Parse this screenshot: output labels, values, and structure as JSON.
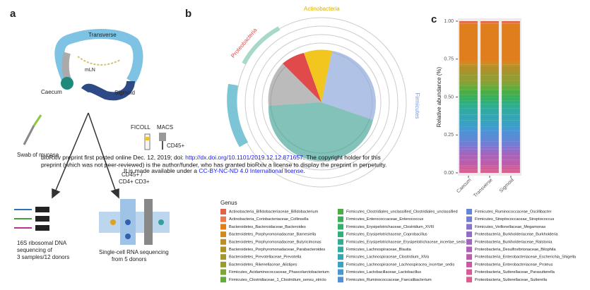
{
  "panel_labels": [
    "a",
    "b",
    "c"
  ],
  "panel_a": {
    "colon_labels": [
      "Transverse",
      "mLN",
      "Caecum",
      "Sigmoid"
    ],
    "swab": "Swab of mucosa",
    "ficoll": "FICOLL",
    "macs": "MACS",
    "cd45": "CD45+",
    "sorted": [
      "CD45+ /",
      "CD4+ CD3+"
    ],
    "dna_caption": [
      "16S ribosomal DNA",
      "sequencing of",
      "3 samples/12 donors"
    ],
    "rna_caption": [
      "Single-cell RNA sequencing",
      "from 5 donors"
    ]
  },
  "panel_b": {
    "phyla": [
      "Actinobacteria",
      "Proteobacteria",
      "Firmicutes"
    ]
  },
  "notice": {
    "line1": "bioRxiv preprint first posted online Dec. 12, 2019; doi: ",
    "doi": "http://dx.doi.org/10.1101/2019.12.12.871657",
    "line1b": ". The copyright holder for this",
    "line2": "preprint (which was not peer-reviewed) is the author/funder, who has granted bioRxiv a license to display the preprint in perpetuity.",
    "line3": "It is made available under a ",
    "license": "CC-BY-NC-ND 4.0 International license",
    "line3b": "."
  },
  "chart_data": {
    "type": "stacked-bar",
    "ylabel": "Relative abundance (%)",
    "legend_title": "Genus",
    "categories": [
      "Caecum",
      "Transverse",
      "Sigmoid"
    ],
    "ylim": [
      0,
      1
    ],
    "yticks": [
      {
        "value": 0,
        "label": "0.00"
      },
      {
        "value": 0.25,
        "label": "0.25"
      },
      {
        "value": 0.5,
        "label": "0.50"
      },
      {
        "value": 0.75,
        "label": "0.75"
      },
      {
        "value": 1,
        "label": "1.00"
      }
    ],
    "series": [
      {
        "name": "Actinobacteria_Bifidobacteriaceae_Bifidobacterium",
        "color": "#e3604a",
        "values": [
          0.01,
          0.01,
          0.01
        ]
      },
      {
        "name": "Actinobacteria_Coriobacteriaceae_Collinsella",
        "color": "#ec7a4c",
        "values": [
          0.005,
          0.005,
          0.005
        ]
      },
      {
        "name": "Bacteroidetes_Bacteroidaceae_Bacteroides",
        "color": "#e07d1c",
        "values": [
          0.25,
          0.25,
          0.25
        ]
      },
      {
        "name": "Bacteroidetes_Porphyromonadaceae_Barnesiella",
        "color": "#cf8a24",
        "values": [
          0.02,
          0.02,
          0.02
        ]
      },
      {
        "name": "Bacteroidetes_Porphyromonadaceae_Butyricimonas",
        "color": "#bf8c28",
        "values": [
          0.01,
          0.01,
          0.01
        ]
      },
      {
        "name": "Bacteroidetes_Porphyromonadaceae_Parabacteroides",
        "color": "#b0902a",
        "values": [
          0.04,
          0.04,
          0.04
        ]
      },
      {
        "name": "Bacteroidetes_Prevotellaceae_Prevotella",
        "color": "#a3962c",
        "values": [
          0.02,
          0.02,
          0.02
        ]
      },
      {
        "name": "Bacteroidetes_Rikenellaceae_Alistipes",
        "color": "#959c30",
        "values": [
          0.04,
          0.04,
          0.04
        ]
      },
      {
        "name": "Firmicutes_Acidaminococcaceae_Phascolarctobacterium",
        "color": "#7ea536",
        "values": [
          0.03,
          0.03,
          0.03
        ]
      },
      {
        "name": "Firmicutes_Clostridiaceae_1_Clostridium_sensu_stricto",
        "color": "#62ab3c",
        "values": [
          0.03,
          0.03,
          0.03
        ]
      },
      {
        "name": "Firmicutes_Clostridiales_unclassified_Clostridiales_unclassified",
        "color": "#4aae46",
        "values": [
          0.03,
          0.03,
          0.03
        ]
      },
      {
        "name": "Firmicutes_Enterococcaceae_Enterococcus",
        "color": "#38b055",
        "values": [
          0.02,
          0.02,
          0.02
        ]
      },
      {
        "name": "Firmicutes_Erysipelotrichaceae_Clostridium_XVIII",
        "color": "#32b068",
        "values": [
          0.02,
          0.02,
          0.02
        ]
      },
      {
        "name": "Firmicutes_Erysipelotrichaceae_Coprobacillus",
        "color": "#30af7c",
        "values": [
          0.02,
          0.02,
          0.02
        ]
      },
      {
        "name": "Firmicutes_Erysipelotrichaceae_Erysipelotrichaceae_incertae_sedis",
        "color": "#2fad8f",
        "values": [
          0.03,
          0.03,
          0.03
        ]
      },
      {
        "name": "Firmicutes_Lachnospiraceae_Blautia",
        "color": "#30aaa2",
        "values": [
          0.04,
          0.04,
          0.04
        ]
      },
      {
        "name": "Firmicutes_Lachnospiraceae_Clostridium_XlVa",
        "color": "#32a6b4",
        "values": [
          0.04,
          0.04,
          0.04
        ]
      },
      {
        "name": "Firmicutes_Lachnospiraceae_Lachnospiracea_incertae_sedis",
        "color": "#38a1c4",
        "values": [
          0.04,
          0.04,
          0.04
        ]
      },
      {
        "name": "Firmicutes_Lactobacillaceae_Lactobacillus",
        "color": "#4499d0",
        "values": [
          0.03,
          0.03,
          0.03
        ]
      },
      {
        "name": "Firmicutes_Ruminococcaceae_Faecalibacterium",
        "color": "#538fd6",
        "values": [
          0.04,
          0.04,
          0.04
        ]
      },
      {
        "name": "Firmicutes_Ruminococcaceae_Oscillibacter",
        "color": "#6486d7",
        "values": [
          0.03,
          0.03,
          0.03
        ]
      },
      {
        "name": "Firmicutes_Streptococcaceae_Streptococcus",
        "color": "#757cd4",
        "values": [
          0.03,
          0.03,
          0.03
        ]
      },
      {
        "name": "Firmicutes_Veillonellaceae_Megamonas",
        "color": "#8573ce",
        "values": [
          0.02,
          0.02,
          0.02
        ]
      },
      {
        "name": "Proteobacteria_Burkholderiaceae_Burkholderia",
        "color": "#946bc7",
        "values": [
          0.02,
          0.02,
          0.02
        ]
      },
      {
        "name": "Proteobacteria_Burkholderiaceae_Ralstonia",
        "color": "#a265bf",
        "values": [
          0.02,
          0.02,
          0.02
        ]
      },
      {
        "name": "Proteobacteria_Desulfovibrionaceae_Bilophila",
        "color": "#b060b6",
        "values": [
          0.03,
          0.03,
          0.03
        ]
      },
      {
        "name": "Proteobacteria_Enterobacteriaceae_Escherichia_Shigella",
        "color": "#bd5cac",
        "values": [
          0.035,
          0.035,
          0.035
        ]
      },
      {
        "name": "Proteobacteria_Enterobacteriaceae_Proteus",
        "color": "#c95aa2",
        "values": [
          0.01,
          0.01,
          0.01
        ]
      },
      {
        "name": "Proteobacteria_Sutterellaceae_Parasutterella",
        "color": "#d25b98",
        "values": [
          0.02,
          0.02,
          0.02
        ]
      },
      {
        "name": "Proteobacteria_Sutterellaceae_Sutterella",
        "color": "#da5f8e",
        "values": [
          0.02,
          0.02,
          0.02
        ]
      }
    ]
  }
}
